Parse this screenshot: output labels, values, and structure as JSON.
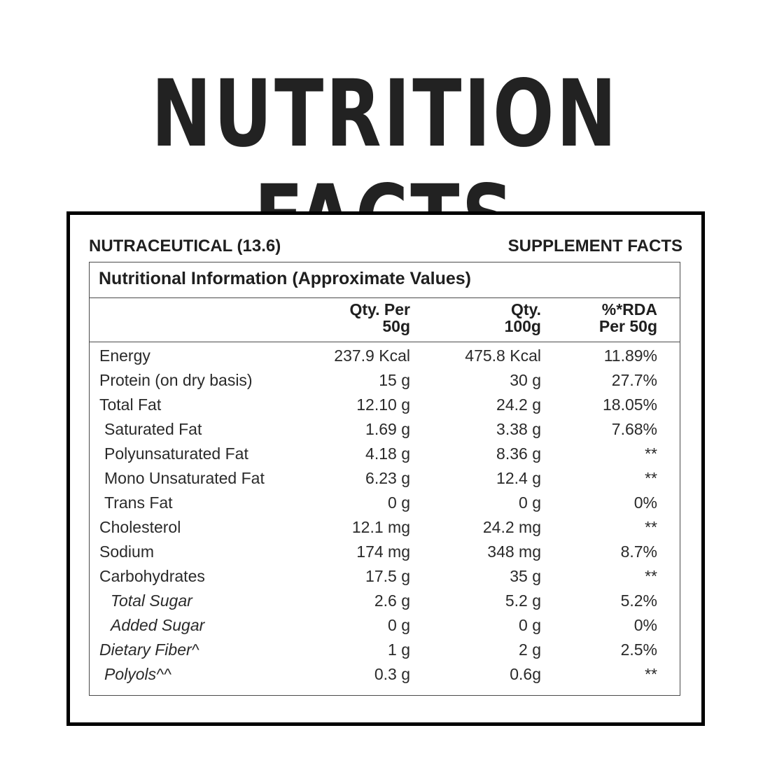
{
  "headline": "NUTRITION FACTS",
  "brand_left": "NUTRACEUTICAL (13.6)",
  "brand_right": "SUPPLEMENT FACTS",
  "table_title": "Nutritional Information (Approximate Values)",
  "columns": {
    "per50_line1": "Qty. Per",
    "per50_line2": "50g",
    "per100_line1": "Qty.",
    "per100_line2": "100g",
    "rda_line1": "%*RDA",
    "rda_line2": "Per 50g"
  },
  "rows": [
    {
      "name": "Energy",
      "per50": "237.9 Kcal",
      "per100": "475.8 Kcal",
      "rda": "11.89%"
    },
    {
      "name": "Protein (on dry basis)",
      "per50": "15 g",
      "per100": "30 g",
      "rda": "27.7%"
    },
    {
      "name": "Total Fat",
      "per50": "12.10 g",
      "per100": "24.2 g",
      "rda": "18.05%"
    },
    {
      "name": "Saturated Fat",
      "per50": "1.69 g",
      "per100": "3.38 g",
      "rda": "7.68%"
    },
    {
      "name": "Polyunsaturated Fat",
      "per50": "4.18 g",
      "per100": "8.36 g",
      "rda": "**"
    },
    {
      "name": "Mono Unsaturated Fat",
      "per50": "6.23 g",
      "per100": "12.4 g",
      "rda": "**"
    },
    {
      "name": "Trans Fat",
      "per50": "0 g",
      "per100": "0 g",
      "rda": "0%"
    },
    {
      "name": "Cholesterol",
      "per50": "12.1 mg",
      "per100": "24.2 mg",
      "rda": "**"
    },
    {
      "name": "Sodium",
      "per50": "174 mg",
      "per100": "348 mg",
      "rda": "8.7%"
    },
    {
      "name": "Carbohydrates",
      "per50": "17.5 g",
      "per100": "35 g",
      "rda": "**"
    },
    {
      "name": "Total Sugar",
      "per50": "2.6 g",
      "per100": "5.2 g",
      "rda": "5.2%"
    },
    {
      "name": "Added Sugar",
      "per50": "0 g",
      "per100": "0 g",
      "rda": "0%"
    },
    {
      "name": "Dietary Fiber^",
      "per50": "1 g",
      "per100": "2 g",
      "rda": "2.5%"
    },
    {
      "name": "Polyols^^",
      "per50": "0.3 g",
      "per100": "0.6g",
      "rda": "**"
    }
  ]
}
